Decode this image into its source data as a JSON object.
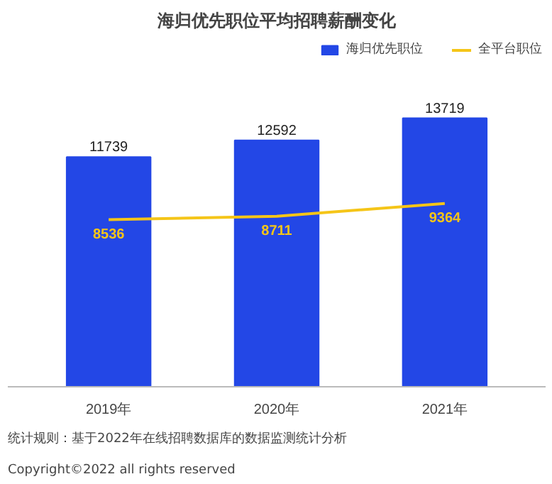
{
  "chart_data": {
    "type": "bar",
    "title": "海归优先职位平均招聘薪酬变化",
    "categories": [
      "2019年",
      "2020年",
      "2021年"
    ],
    "series": [
      {
        "name": "海归优先职位",
        "color": "#2347e6",
        "values": [
          11739,
          12592,
          13719
        ]
      },
      {
        "name": "全平台职位",
        "type": "line",
        "color": "#f5c518",
        "values": [
          8536,
          8711,
          9364
        ]
      }
    ],
    "data_labels": true,
    "legend": "top right",
    "grid": false,
    "annotations": [
      "统计规则：基于2022年在线招聘数据库的数据监测统计分析",
      "Copyright©2022 all rights reserved"
    ]
  }
}
